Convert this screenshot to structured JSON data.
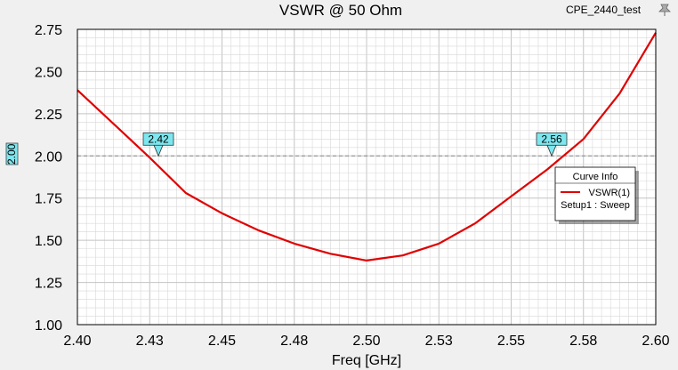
{
  "chart_data": {
    "type": "line",
    "title": "VSWR @ 50 Ohm",
    "subtitle": "CPE_2440_test",
    "xlabel": "Freq [GHz]",
    "ylabel": "",
    "xlim": [
      2.4,
      2.6
    ],
    "ylim": [
      1.0,
      2.75
    ],
    "x_ticks": [
      2.4,
      2.425,
      2.45,
      2.475,
      2.5,
      2.525,
      2.55,
      2.575,
      2.6
    ],
    "x_tick_labels": [
      "2.40",
      "2.43",
      "2.45",
      "2.48",
      "2.50",
      "2.53",
      "2.55",
      "2.58",
      "2.60"
    ],
    "y_ticks": [
      1.0,
      1.25,
      1.5,
      1.75,
      2.0,
      2.25,
      2.5,
      2.75
    ],
    "y_tick_labels": [
      "1.00",
      "1.25",
      "1.50",
      "1.75",
      "2.00",
      "2.25",
      "2.50",
      "2.75"
    ],
    "grid": true,
    "series": [
      {
        "name": "VSWR(1)",
        "color": "#e00000",
        "x": [
          2.4,
          2.4125,
          2.425,
          2.4375,
          2.45,
          2.4625,
          2.475,
          2.4875,
          2.5,
          2.5125,
          2.525,
          2.5375,
          2.55,
          2.5625,
          2.575,
          2.5875,
          2.6
        ],
        "y": [
          2.39,
          2.19,
          1.99,
          1.78,
          1.66,
          1.56,
          1.48,
          1.42,
          1.38,
          1.41,
          1.48,
          1.6,
          1.76,
          1.92,
          2.1,
          2.37,
          2.73
        ]
      }
    ],
    "reference_line": {
      "y": 2.0,
      "label": "2.00",
      "style": "dashed",
      "color": "#888888"
    },
    "markers": [
      {
        "x": 2.428,
        "y": 2.0,
        "label": "2.42"
      },
      {
        "x": 2.564,
        "y": 2.0,
        "label": "2.56"
      }
    ],
    "legend": {
      "title": "Curve Info",
      "entries": [
        {
          "name": "VSWR(1)",
          "detail": "Setup1 : Sweep"
        }
      ],
      "placement": "right"
    }
  },
  "colors": {
    "background": "#f0f0f0",
    "plot_area": "#ffffff",
    "grid": "#d8d8d8",
    "marker_fill": "#7ee6ee",
    "curve": "#e00000"
  },
  "icons": {
    "corner": "pin-icon"
  }
}
